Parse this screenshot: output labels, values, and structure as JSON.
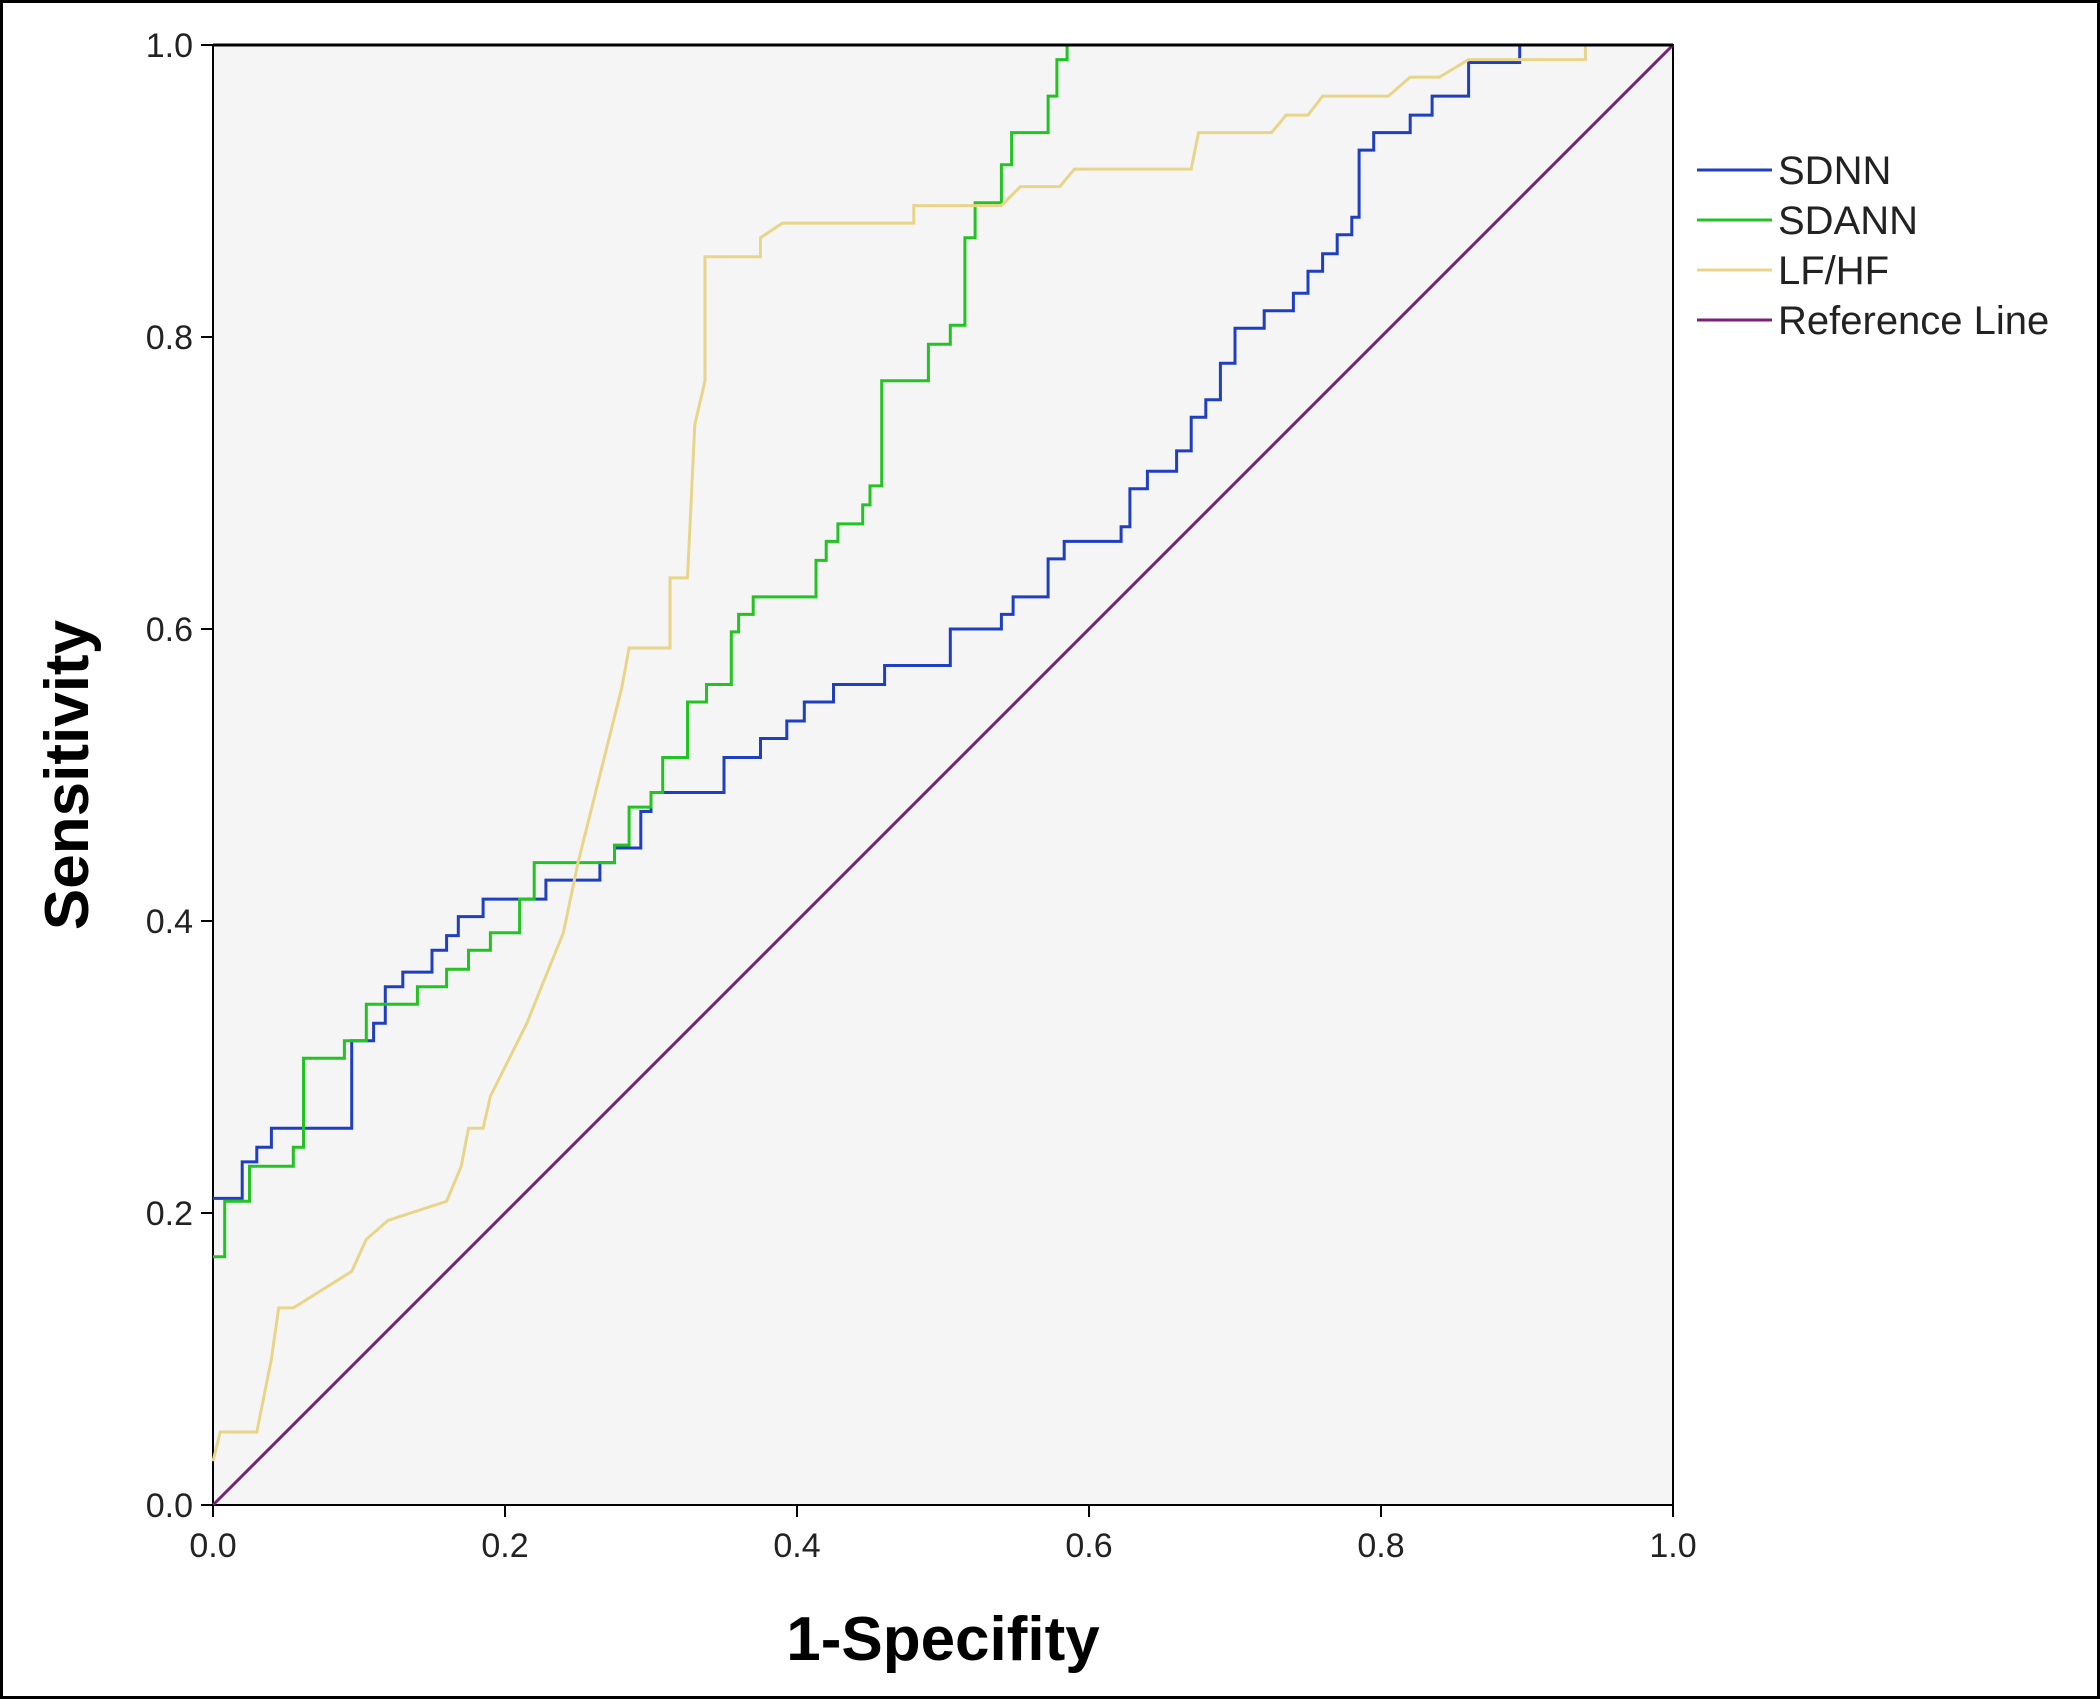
{
  "chart_data": {
    "type": "line",
    "title": "",
    "xlabel": "1-Specifity",
    "ylabel": "Sensitivity",
    "xlim": [
      0,
      1
    ],
    "ylim": [
      0,
      1
    ],
    "x_ticks": [
      "0.0",
      "0.2",
      "0.4",
      "0.6",
      "0.8",
      "1.0"
    ],
    "y_ticks": [
      "0.0",
      "0.2",
      "0.4",
      "0.6",
      "0.8",
      "1.0"
    ],
    "grid": false,
    "legend_position": "right",
    "plot_background": "#f5f5f5",
    "series": [
      {
        "name": "SDNN",
        "color": "#1f3fbf",
        "points": [
          [
            0,
            0.21
          ],
          [
            0.02,
            0.21
          ],
          [
            0.02,
            0.235
          ],
          [
            0.03,
            0.235
          ],
          [
            0.03,
            0.245
          ],
          [
            0.04,
            0.245
          ],
          [
            0.04,
            0.258
          ],
          [
            0.095,
            0.258
          ],
          [
            0.095,
            0.318
          ],
          [
            0.11,
            0.318
          ],
          [
            0.11,
            0.33
          ],
          [
            0.118,
            0.33
          ],
          [
            0.118,
            0.355
          ],
          [
            0.13,
            0.355
          ],
          [
            0.13,
            0.365
          ],
          [
            0.15,
            0.365
          ],
          [
            0.15,
            0.38
          ],
          [
            0.16,
            0.38
          ],
          [
            0.16,
            0.39
          ],
          [
            0.168,
            0.39
          ],
          [
            0.168,
            0.403
          ],
          [
            0.185,
            0.403
          ],
          [
            0.185,
            0.415
          ],
          [
            0.228,
            0.415
          ],
          [
            0.228,
            0.428
          ],
          [
            0.265,
            0.428
          ],
          [
            0.265,
            0.44
          ],
          [
            0.275,
            0.44
          ],
          [
            0.275,
            0.45
          ],
          [
            0.293,
            0.45
          ],
          [
            0.293,
            0.475
          ],
          [
            0.3,
            0.475
          ],
          [
            0.3,
            0.488
          ],
          [
            0.35,
            0.488
          ],
          [
            0.35,
            0.512
          ],
          [
            0.375,
            0.512
          ],
          [
            0.375,
            0.525
          ],
          [
            0.393,
            0.525
          ],
          [
            0.393,
            0.537
          ],
          [
            0.405,
            0.537
          ],
          [
            0.405,
            0.55
          ],
          [
            0.425,
            0.55
          ],
          [
            0.425,
            0.562
          ],
          [
            0.46,
            0.562
          ],
          [
            0.46,
            0.575
          ],
          [
            0.505,
            0.575
          ],
          [
            0.505,
            0.6
          ],
          [
            0.54,
            0.6
          ],
          [
            0.54,
            0.61
          ],
          [
            0.548,
            0.61
          ],
          [
            0.548,
            0.622
          ],
          [
            0.572,
            0.622
          ],
          [
            0.572,
            0.648
          ],
          [
            0.583,
            0.648
          ],
          [
            0.583,
            0.66
          ],
          [
            0.622,
            0.66
          ],
          [
            0.622,
            0.67
          ],
          [
            0.628,
            0.67
          ],
          [
            0.628,
            0.696
          ],
          [
            0.64,
            0.696
          ],
          [
            0.64,
            0.708
          ],
          [
            0.66,
            0.708
          ],
          [
            0.66,
            0.722
          ],
          [
            0.67,
            0.722
          ],
          [
            0.67,
            0.745
          ],
          [
            0.68,
            0.745
          ],
          [
            0.68,
            0.757
          ],
          [
            0.69,
            0.757
          ],
          [
            0.69,
            0.782
          ],
          [
            0.7,
            0.782
          ],
          [
            0.7,
            0.806
          ],
          [
            0.72,
            0.806
          ],
          [
            0.72,
            0.818
          ],
          [
            0.74,
            0.818
          ],
          [
            0.74,
            0.83
          ],
          [
            0.75,
            0.83
          ],
          [
            0.75,
            0.845
          ],
          [
            0.76,
            0.845
          ],
          [
            0.76,
            0.857
          ],
          [
            0.77,
            0.857
          ],
          [
            0.77,
            0.87
          ],
          [
            0.78,
            0.87
          ],
          [
            0.78,
            0.882
          ],
          [
            0.785,
            0.882
          ],
          [
            0.785,
            0.928
          ],
          [
            0.795,
            0.928
          ],
          [
            0.795,
            0.94
          ],
          [
            0.82,
            0.94
          ],
          [
            0.82,
            0.952
          ],
          [
            0.835,
            0.952
          ],
          [
            0.835,
            0.965
          ],
          [
            0.86,
            0.965
          ],
          [
            0.86,
            0.988
          ],
          [
            0.895,
            0.988
          ],
          [
            0.895,
            1.0
          ],
          [
            1.0,
            1.0
          ]
        ]
      },
      {
        "name": "SDANN",
        "color": "#22c322",
        "points": [
          [
            0,
            0.17
          ],
          [
            0.008,
            0.17
          ],
          [
            0.008,
            0.208
          ],
          [
            0.025,
            0.208
          ],
          [
            0.025,
            0.232
          ],
          [
            0.055,
            0.232
          ],
          [
            0.055,
            0.245
          ],
          [
            0.062,
            0.245
          ],
          [
            0.062,
            0.306
          ],
          [
            0.09,
            0.306
          ],
          [
            0.09,
            0.318
          ],
          [
            0.105,
            0.318
          ],
          [
            0.105,
            0.343
          ],
          [
            0.14,
            0.343
          ],
          [
            0.14,
            0.355
          ],
          [
            0.16,
            0.355
          ],
          [
            0.16,
            0.367
          ],
          [
            0.175,
            0.367
          ],
          [
            0.175,
            0.38
          ],
          [
            0.19,
            0.38
          ],
          [
            0.19,
            0.392
          ],
          [
            0.21,
            0.392
          ],
          [
            0.21,
            0.415
          ],
          [
            0.22,
            0.415
          ],
          [
            0.22,
            0.44
          ],
          [
            0.275,
            0.44
          ],
          [
            0.275,
            0.452
          ],
          [
            0.285,
            0.452
          ],
          [
            0.285,
            0.478
          ],
          [
            0.3,
            0.478
          ],
          [
            0.3,
            0.488
          ],
          [
            0.308,
            0.488
          ],
          [
            0.308,
            0.512
          ],
          [
            0.325,
            0.512
          ],
          [
            0.325,
            0.55
          ],
          [
            0.338,
            0.55
          ],
          [
            0.338,
            0.562
          ],
          [
            0.355,
            0.562
          ],
          [
            0.355,
            0.598
          ],
          [
            0.36,
            0.598
          ],
          [
            0.36,
            0.61
          ],
          [
            0.37,
            0.61
          ],
          [
            0.37,
            0.622
          ],
          [
            0.413,
            0.622
          ],
          [
            0.413,
            0.647
          ],
          [
            0.42,
            0.647
          ],
          [
            0.42,
            0.66
          ],
          [
            0.428,
            0.66
          ],
          [
            0.428,
            0.672
          ],
          [
            0.445,
            0.672
          ],
          [
            0.445,
            0.685
          ],
          [
            0.45,
            0.685
          ],
          [
            0.45,
            0.698
          ],
          [
            0.458,
            0.698
          ],
          [
            0.458,
            0.77
          ],
          [
            0.49,
            0.77
          ],
          [
            0.49,
            0.795
          ],
          [
            0.505,
            0.795
          ],
          [
            0.505,
            0.808
          ],
          [
            0.515,
            0.808
          ],
          [
            0.515,
            0.868
          ],
          [
            0.522,
            0.868
          ],
          [
            0.522,
            0.892
          ],
          [
            0.54,
            0.892
          ],
          [
            0.54,
            0.918
          ],
          [
            0.547,
            0.918
          ],
          [
            0.547,
            0.94
          ],
          [
            0.572,
            0.94
          ],
          [
            0.572,
            0.965
          ],
          [
            0.578,
            0.965
          ],
          [
            0.578,
            0.99
          ],
          [
            0.585,
            0.99
          ],
          [
            0.585,
            1.0
          ],
          [
            1.0,
            1.0
          ]
        ]
      },
      {
        "name": "LF/HF",
        "color": "#e8d58a",
        "points": [
          [
            0,
            0.03
          ],
          [
            0.005,
            0.05
          ],
          [
            0.03,
            0.05
          ],
          [
            0.04,
            0.1
          ],
          [
            0.045,
            0.135
          ],
          [
            0.055,
            0.135
          ],
          [
            0.095,
            0.16
          ],
          [
            0.105,
            0.182
          ],
          [
            0.12,
            0.195
          ],
          [
            0.16,
            0.208
          ],
          [
            0.17,
            0.232
          ],
          [
            0.175,
            0.258
          ],
          [
            0.185,
            0.258
          ],
          [
            0.19,
            0.28
          ],
          [
            0.21,
            0.32
          ],
          [
            0.215,
            0.33
          ],
          [
            0.225,
            0.355
          ],
          [
            0.24,
            0.392
          ],
          [
            0.25,
            0.44
          ],
          [
            0.26,
            0.48
          ],
          [
            0.27,
            0.52
          ],
          [
            0.28,
            0.56
          ],
          [
            0.285,
            0.587
          ],
          [
            0.313,
            0.587
          ],
          [
            0.313,
            0.635
          ],
          [
            0.325,
            0.635
          ],
          [
            0.33,
            0.74
          ],
          [
            0.337,
            0.77
          ],
          [
            0.337,
            0.855
          ],
          [
            0.375,
            0.855
          ],
          [
            0.375,
            0.868
          ],
          [
            0.39,
            0.878
          ],
          [
            0.48,
            0.878
          ],
          [
            0.48,
            0.89
          ],
          [
            0.54,
            0.89
          ],
          [
            0.553,
            0.903
          ],
          [
            0.58,
            0.903
          ],
          [
            0.59,
            0.915
          ],
          [
            0.67,
            0.915
          ],
          [
            0.675,
            0.94
          ],
          [
            0.725,
            0.94
          ],
          [
            0.735,
            0.952
          ],
          [
            0.75,
            0.952
          ],
          [
            0.76,
            0.965
          ],
          [
            0.805,
            0.965
          ],
          [
            0.82,
            0.978
          ],
          [
            0.84,
            0.978
          ],
          [
            0.86,
            0.99
          ],
          [
            0.94,
            0.99
          ],
          [
            0.94,
            1.0
          ],
          [
            1.0,
            1.0
          ]
        ]
      },
      {
        "name": "Reference Line",
        "color": "#7a1f7a",
        "points": [
          [
            0,
            0
          ],
          [
            1,
            1
          ]
        ]
      }
    ]
  }
}
